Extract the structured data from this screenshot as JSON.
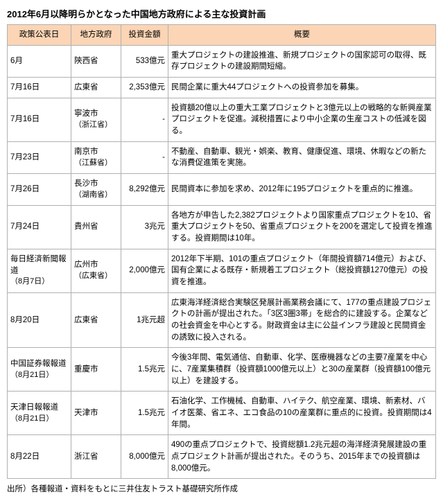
{
  "title": "2012年6月以降明らかとなった中国地方政府による主な投資計画",
  "headers": {
    "date": "政策公表日",
    "gov": "地方政府",
    "amount": "投資金額",
    "summary": "概要"
  },
  "rows": [
    {
      "date": "6月",
      "gov": "陝西省",
      "amount": "533億元",
      "summary": "重大プロジェクトの建設推進、新規プロジェクトの国家認可の取得、既存プロジェクトの建設期間短縮。"
    },
    {
      "date": "7月16日",
      "gov": "広東省",
      "amount": "2,353億元",
      "summary": "民間企業に重大44プロジェクトへの投資参加を募集。"
    },
    {
      "date": "7月16日",
      "gov": "寧波市",
      "gov_sub": "（浙江省）",
      "amount": "-",
      "summary": "投資額20億以上の重大工業プロジェクトと3億元以上の戦略的な新興産業プロジェクトを促進。減税措置により中小企業の生産コストの低減を図る。"
    },
    {
      "date": "7月23日",
      "gov": "南京市",
      "gov_sub": "（江蘇省）",
      "amount": "-",
      "summary": "不動産、自動車、観光・娯楽、教育、健康促進、環境、休暇などの新たな消費促進策を実施。"
    },
    {
      "date": "7月26日",
      "gov": "長沙市",
      "gov_sub": "（湖南省）",
      "amount": "8,292億元",
      "summary": "民間資本に参加を求め、2012年に195プロジェクトを重点的に推進。"
    },
    {
      "date": "7月24日",
      "gov": "貴州省",
      "amount": "3兆元",
      "summary": "各地方が申告した2,382プロジェクトより国家重点プロジェクトを10、省重大プロジェクトを50、省重点プロジェクトを200を選定して投資を推進する。投資期間は10年。"
    },
    {
      "date": "毎日経済新聞報道",
      "date_sub": "（8月7日）",
      "gov": "広州市",
      "gov_sub": "（広東省）",
      "amount": "2,000億元",
      "summary": "2012年下半期、101の重点プロジェクト（年間投資額714億元）および、国有企業による既存・新規着工プロジェクト（総投資額1270億元）の投資を推進。"
    },
    {
      "date": "8月20日",
      "gov": "広東省",
      "amount": "1兆元超",
      "summary": "広東海洋経済総合実験区発展計画業務会議にて、177の重点建設プロジェクトの計画が提出された。「3区3圏3帯」を総合的に建設する。企業などの社会資金を中心とする。財政資金は主に公益インフラ建設と民間資金の誘致に投入される。"
    },
    {
      "date": "中国証券報報道",
      "date_sub": "（8月21日）",
      "gov": "重慶市",
      "amount": "1.5兆元",
      "summary": "今後3年間、電気通信、自動車、化学、医療機器などの主要7産業を中心に、7産業集積群（投資額1000億元以上）と30の産業群（投資額100億元以上）を建設する。"
    },
    {
      "date": "天津日報報道",
      "date_sub": "（8月21日）",
      "gov": "天津市",
      "amount": "1.5兆元",
      "summary": "石油化学、工作機械、自動車、ハイテク、航空産業、環境、新素材、バイオ医薬、省エネ、エコ食品の10の産業群に重点的に投資。投資期間は4年間。"
    },
    {
      "date": "8月22日",
      "gov": "浙江省",
      "amount": "8,000億元",
      "summary": "490の重点プロジェクトで、投資総額1.2兆元超の海洋経済発展建設の重点プロジェクト計画が提出された。そのうち、2015年までの投資額は8,000億元。"
    }
  ],
  "source": "出所）各種報道・資料をもとに三井住友トラスト基礎研究所作成",
  "style": {
    "header_bg": "#fbd5b5",
    "border_color": "#b0b0b0",
    "title_fontsize": 13,
    "cell_fontsize": 11.5
  }
}
